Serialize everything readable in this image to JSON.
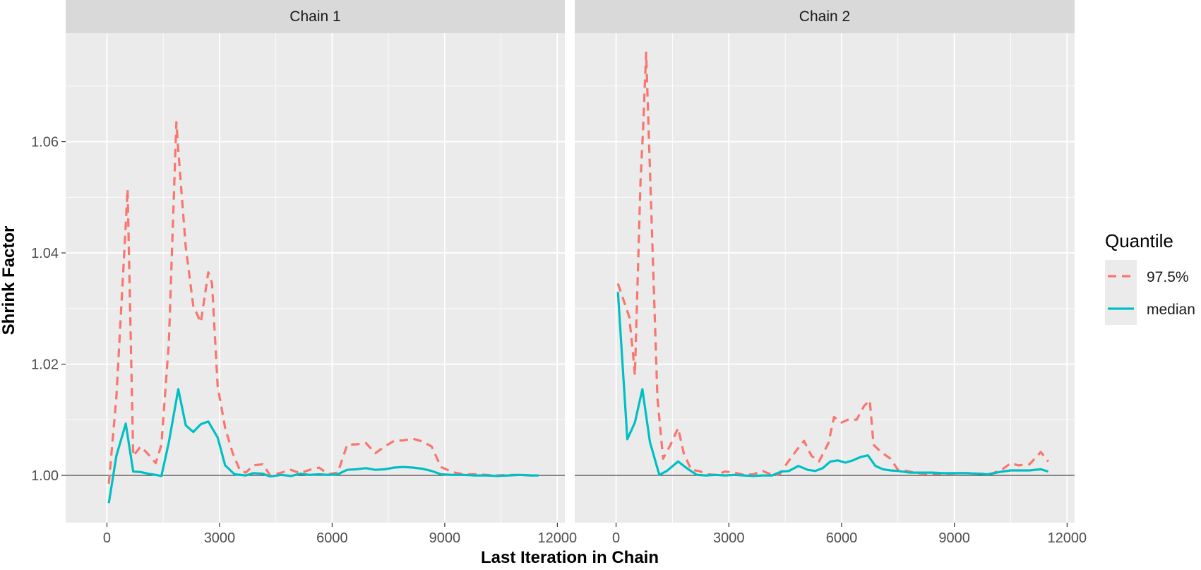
{
  "chart_data": {
    "type": "line",
    "xlabel": "Last Iteration in Chain",
    "ylabel": "Shrink Factor",
    "xlim": [
      -1100,
      12200
    ],
    "ylim": [
      0.9915,
      1.0795
    ],
    "x_ticks": [
      0,
      3000,
      6000,
      9000,
      12000
    ],
    "x_tick_labels": [
      "0",
      "3000",
      "6000",
      "9000",
      "12000"
    ],
    "y_ticks": [
      1.0,
      1.02,
      1.04,
      1.06
    ],
    "y_tick_labels": [
      "1.00",
      "1.02",
      "1.04",
      "1.06"
    ],
    "reference_line": 1.0,
    "grid": true,
    "legend": {
      "title": "Quantile",
      "position": "right",
      "entries": [
        {
          "name": "97.5%",
          "color": "#F8766D",
          "dash": "dashed"
        },
        {
          "name": "median",
          "color": "#00BFC4",
          "dash": "solid"
        }
      ]
    },
    "colors": {
      "q975": "#F8766D",
      "median": "#00BFC4",
      "panel_bg": "#EBEBEB",
      "strip_bg": "#D9D9D9"
    },
    "panels": [
      {
        "strip": "Chain 1",
        "series": [
          {
            "name": "97.5%",
            "x": [
              50,
              250,
              500,
              550,
              700,
              900,
              1100,
              1300,
              1450,
              1650,
              1850,
              1900,
              2100,
              2300,
              2500,
              2700,
              2800,
              2950,
              3150,
              3350,
              3550,
              3700,
              3900,
              4150,
              4350,
              4650,
              4900,
              5150,
              5400,
              5650,
              5900,
              6150,
              6400,
              6650,
              6900,
              7150,
              7400,
              7650,
              7900,
              8150,
              8400,
              8650,
              8900,
              9200,
              9500,
              9800,
              10100,
              10400,
              10700,
              11000,
              11300,
              11500
            ],
            "values": [
              0.9985,
              1.014,
              1.045,
              1.0515,
              1.0035,
              1.0052,
              1.0038,
              1.0022,
              1.0055,
              1.024,
              1.0635,
              1.0585,
              1.041,
              1.0305,
              1.0275,
              1.0365,
              1.0345,
              1.016,
              1.0085,
              1.004,
              1.0008,
              1.0005,
              1.0018,
              1.002,
              1.0,
              1.0005,
              1.001,
              1.0004,
              1.001,
              1.0014,
              1.0002,
              1.0005,
              1.0055,
              1.0056,
              1.0058,
              1.004,
              1.0052,
              1.0062,
              1.0063,
              1.0066,
              1.0061,
              1.0052,
              1.0015,
              1.0006,
              1.0002,
              1.0002,
              1.0001,
              1.0,
              1.0001,
              1.0001,
              1.0,
              1.0
            ]
          },
          {
            "name": "median",
            "x": [
              50,
              250,
              500,
              700,
              900,
              1100,
              1300,
              1450,
              1650,
              1900,
              2100,
              2300,
              2500,
              2700,
              2950,
              3150,
              3400,
              3700,
              3900,
              4150,
              4350,
              4650,
              4900,
              5150,
              5400,
              5650,
              5900,
              6150,
              6400,
              6650,
              6900,
              7150,
              7400,
              7650,
              7900,
              8150,
              8400,
              8650,
              8900,
              9200,
              9500,
              9800,
              10100,
              10400,
              10700,
              11000,
              11300,
              11500
            ],
            "values": [
              0.995,
              1.0035,
              1.0093,
              1.0007,
              1.0006,
              1.0003,
              1.0001,
              0.9999,
              1.006,
              1.0155,
              1.009,
              1.0078,
              1.0092,
              1.0097,
              1.0068,
              1.0018,
              1.0002,
              1.0,
              1.0004,
              1.0003,
              0.9998,
              1.0001,
              0.9999,
              1.0003,
              1.0001,
              1.0002,
              1.0001,
              1.0002,
              1.001,
              1.0011,
              1.0013,
              1.001,
              1.0011,
              1.0014,
              1.0015,
              1.0014,
              1.0012,
              1.0008,
              1.0002,
              1.0001,
              1.0001,
              1.0,
              1.0,
              0.9999,
              1.0,
              1.0001,
              1.0,
              1.0
            ]
          }
        ]
      },
      {
        "strip": "Chain 2",
        "series": [
          {
            "name": "97.5%",
            "x": [
              50,
              350,
              450,
              500,
              650,
              720,
              800,
              950,
              1100,
              1250,
              1450,
              1650,
              1800,
              2000,
              2200,
              2450,
              2650,
              2900,
              3150,
              3400,
              3650,
              3900,
              4150,
              4350,
              4550,
              4800,
              5000,
              5200,
              5400,
              5650,
              5800,
              6000,
              6200,
              6400,
              6600,
              6750,
              6850,
              7050,
              7300,
              7500,
              7750,
              8000,
              8250,
              8500,
              8800,
              9100,
              9400,
              9700,
              10000,
              10300,
              10500,
              10700,
              11000,
              11300,
              11500
            ],
            "values": [
              1.0345,
              1.0285,
              1.022,
              1.018,
              1.053,
              1.0625,
              1.076,
              1.045,
              1.014,
              1.003,
              1.0055,
              1.0085,
              1.004,
              1.001,
              1.0008,
              1.0002,
              1.0001,
              1.0007,
              1.0005,
              1.0001,
              1.0002,
              1.0008,
              1.0001,
              1.0002,
              1.0022,
              1.0045,
              1.0062,
              1.0035,
              1.0025,
              1.0058,
              1.0105,
              1.0095,
              1.0101,
              1.01,
              1.0125,
              1.0135,
              1.0055,
              1.0042,
              1.003,
              1.001,
              1.0008,
              1.0004,
              1.0003,
              1.0003,
              1.0003,
              1.0004,
              1.0004,
              1.0003,
              1.0003,
              1.0012,
              1.0022,
              1.0018,
              1.002,
              1.0042,
              1.0025
            ]
          },
          {
            "name": "median",
            "x": [
              50,
              300,
              500,
              700,
              900,
              1150,
              1350,
              1650,
              1900,
              2150,
              2400,
              2650,
              2900,
              3150,
              3400,
              3650,
              3900,
              4150,
              4400,
              4600,
              4850,
              5100,
              5300,
              5500,
              5700,
              5900,
              6100,
              6300,
              6500,
              6700,
              6900,
              7100,
              7300,
              7500,
              7800,
              8100,
              8400,
              8700,
              9000,
              9300,
              9600,
              9900,
              10200,
              10500,
              10800,
              11000,
              11300,
              11500
            ],
            "values": [
              1.033,
              1.0065,
              1.0095,
              1.0155,
              1.006,
              1.0001,
              1.0008,
              1.0025,
              1.0012,
              1.0001,
              1.0,
              1.0001,
              1.0,
              1.0001,
              1.0,
              0.9999,
              1.0,
              1.0,
              1.0007,
              1.0008,
              1.0017,
              1.001,
              1.0008,
              1.0013,
              1.0025,
              1.0027,
              1.0023,
              1.0027,
              1.0033,
              1.0036,
              1.0017,
              1.0011,
              1.0009,
              1.0008,
              1.0005,
              1.0005,
              1.0005,
              1.0004,
              1.0004,
              1.0004,
              1.0003,
              1.0002,
              1.0006,
              1.0009,
              1.0009,
              1.0009,
              1.0011,
              1.0007
            ]
          }
        ]
      }
    ]
  }
}
